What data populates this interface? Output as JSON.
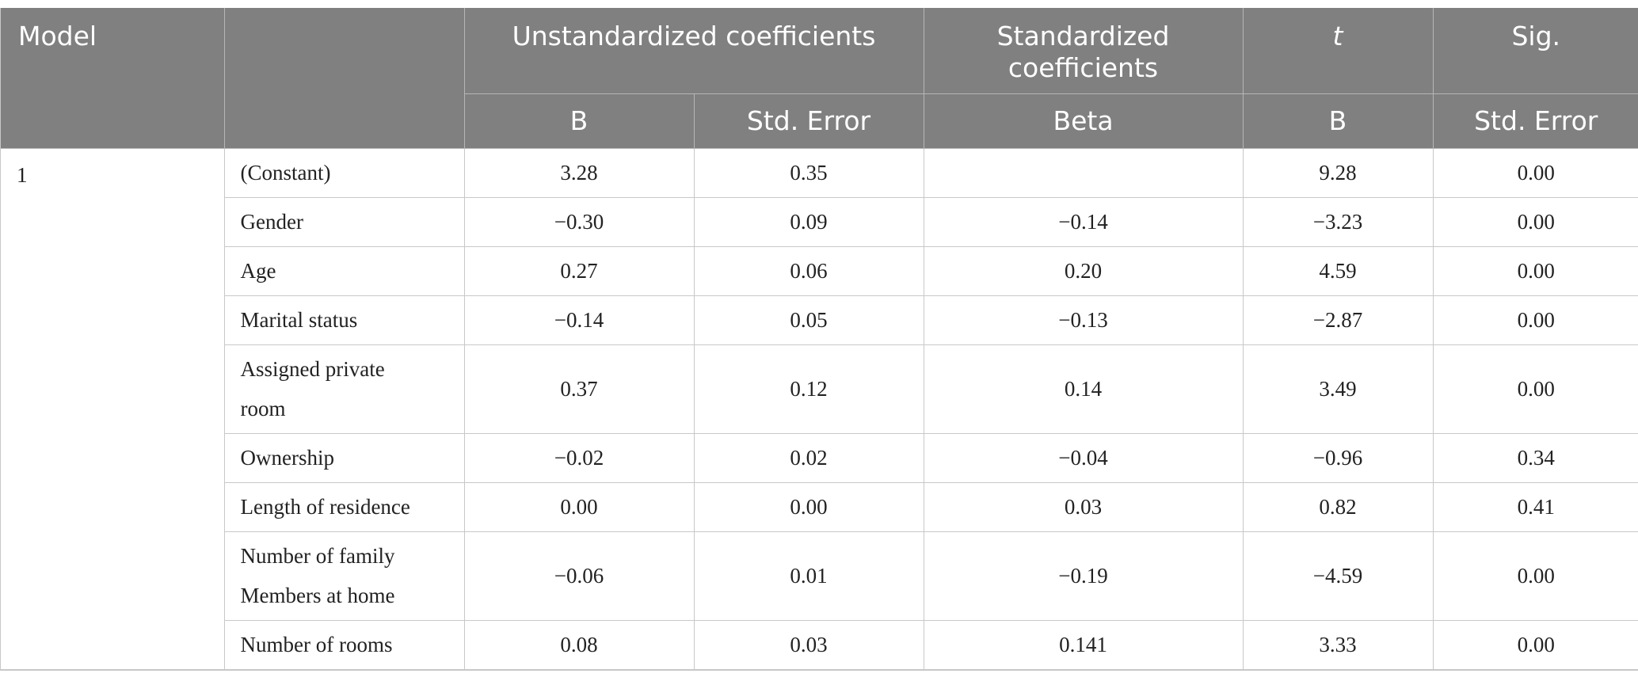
{
  "header": {
    "model": "Model",
    "blank": "",
    "unstandardized": "Unstandardized coefficients",
    "standardized_line1": "Standardized",
    "standardized_line2": "coefficients",
    "t": "t",
    "sig": "Sig.",
    "sub_b": "B",
    "sub_std_error": "Std. Error",
    "sub_beta": "Beta",
    "sub_t": "B",
    "sub_sig": "Std. Error"
  },
  "model_number": "1",
  "rows": [
    {
      "label": "(Constant)",
      "b": "3.28",
      "se": "0.35",
      "beta": "",
      "t": "9.28",
      "sig": "0.00"
    },
    {
      "label": "Gender",
      "b": "−0.30",
      "se": "0.09",
      "beta": "−0.14",
      "t": "−3.23",
      "sig": "0.00"
    },
    {
      "label": "Age",
      "b": "0.27",
      "se": "0.06",
      "beta": "0.20",
      "t": "4.59",
      "sig": "0.00"
    },
    {
      "label": "Marital status",
      "b": "−0.14",
      "se": "0.05",
      "beta": "−0.13",
      "t": "−2.87",
      "sig": "0.00"
    },
    {
      "label_line1": "Assigned private",
      "label_line2": "room",
      "b": "0.37",
      "se": "0.12",
      "beta": "0.14",
      "t": "3.49",
      "sig": "0.00"
    },
    {
      "label": "Ownership",
      "b": "−0.02",
      "se": "0.02",
      "beta": "−0.04",
      "t": "−0.96",
      "sig": "0.34"
    },
    {
      "label": "Length of residence",
      "b": "0.00",
      "se": "0.00",
      "beta": "0.03",
      "t": "0.82",
      "sig": "0.41"
    },
    {
      "label_line1": "Number of family",
      "label_line2": "Members at home",
      "b": "−0.06",
      "se": "0.01",
      "beta": "−0.19",
      "t": "−4.59",
      "sig": "0.00"
    },
    {
      "label": "Number of rooms",
      "b": "0.08",
      "se": "0.03",
      "beta": "0.141",
      "t": "3.33",
      "sig": "0.00"
    }
  ]
}
